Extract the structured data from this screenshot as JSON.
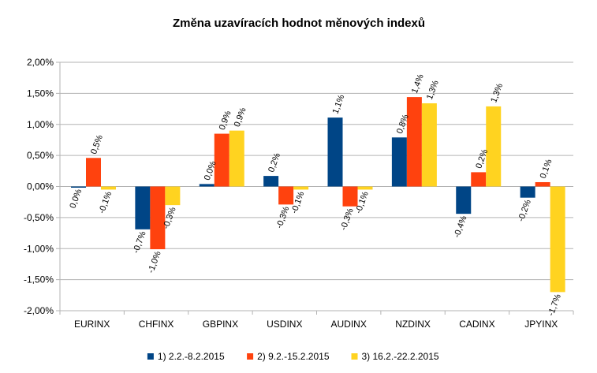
{
  "chart_data": {
    "type": "bar",
    "title": "Změna uzavíracích hodnot měnových indexů",
    "categories": [
      "EURINX",
      "CHFINX",
      "GBPINX",
      "USDINX",
      "AUDINX",
      "NZDINX",
      "CADINX",
      "JPYINX"
    ],
    "series": [
      {
        "name": "1) 2.2.-8.2.2015",
        "color": "#004586",
        "values": [
          -0.01,
          -0.69,
          0.04,
          0.17,
          1.11,
          0.79,
          -0.44,
          -0.18
        ],
        "labels": [
          "0,0%",
          "-0,7%",
          "0,0%",
          "0,2%",
          "1,1%",
          "0,8%",
          "-0,4%",
          "-0,2%"
        ]
      },
      {
        "name": "2) 9.2.-15.2.2015",
        "color": "#ff420e",
        "values": [
          0.46,
          -1.01,
          0.85,
          -0.29,
          -0.32,
          1.44,
          0.23,
          0.07
        ],
        "labels": [
          "0,5%",
          "-1,0%",
          "0,9%",
          "-0,3%",
          "-0,3%",
          "1,4%",
          "0,2%",
          "0,1%"
        ]
      },
      {
        "name": "3) 16.2.-22.2.2015",
        "color": "#ffd320",
        "values": [
          -0.05,
          -0.3,
          0.9,
          -0.05,
          -0.05,
          1.34,
          1.29,
          -1.7
        ],
        "labels": [
          "-0,1%",
          "-0,3%",
          "0,9%",
          "-0,1%",
          "-0,1%",
          "1,3%",
          "1,3%",
          "-1,7%"
        ]
      }
    ],
    "yticks": [
      2.0,
      1.5,
      1.0,
      0.5,
      0.0,
      -0.5,
      -1.0,
      -1.5,
      -2.0
    ],
    "ytick_labels": [
      "2,00%",
      "1,50%",
      "1,00%",
      "0,50%",
      "0,00%",
      "-0,50%",
      "-1,00%",
      "-1,50%",
      "-2,00%"
    ],
    "ylim": [
      -2.0,
      2.0
    ],
    "grid": true,
    "legend": "bottom"
  }
}
